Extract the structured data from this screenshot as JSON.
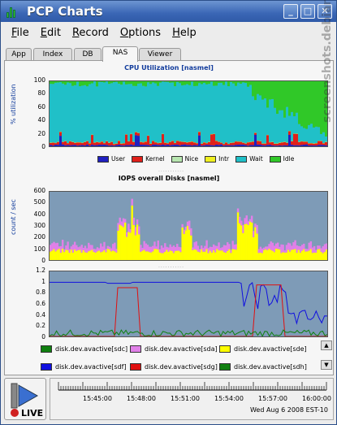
{
  "window": {
    "title": "PCP Charts"
  },
  "menu": [
    {
      "label": "File",
      "u": "F",
      "rest": "ile"
    },
    {
      "label": "Edit",
      "u": "E",
      "rest": "dit"
    },
    {
      "label": "Record",
      "u": "R",
      "rest": "ecord"
    },
    {
      "label": "Options",
      "u": "O",
      "rest": "ptions"
    },
    {
      "label": "Help",
      "u": "H",
      "rest": "elp"
    }
  ],
  "tabs": [
    "App",
    "Index",
    "DB",
    "NAS",
    "Viewer"
  ],
  "active_tab": "NAS",
  "colors": {
    "plot_bg": "#7e9bb7",
    "user": "#2020c0",
    "kernel": "#e0201a",
    "nice": "#b8e6b0",
    "intr": "#f0f020",
    "wait": "#20c0c8",
    "idle": "#30c828",
    "sda": "#e080e8",
    "sdc": "#ffff00",
    "sde": "#ffff00",
    "sdf": "#1010e0",
    "sdg": "#e01010",
    "sdh": "#108010"
  },
  "chart1": {
    "title": "CPU Utilization [nasmel]",
    "ylabel": "% utilization",
    "yticks": [
      "100",
      "80",
      "60",
      "40",
      "20",
      "0"
    ],
    "legend": [
      "User",
      "Kernel",
      "Nice",
      "Intr",
      "Wait",
      "Idle"
    ]
  },
  "chart2": {
    "title": "IOPS overall Disks [nasmel]",
    "ylabel": "count / sec",
    "yticks": [
      "600",
      "500",
      "400",
      "300",
      "200",
      "100",
      "0"
    ]
  },
  "chart3": {
    "yticks": [
      "1.2",
      "1",
      "0.8",
      "0.6",
      "0.4",
      "0.2",
      "0"
    ]
  },
  "disk_legend": [
    "disk.dev.avactive[sdc]",
    "disk.dev.avactive[sda]",
    "disk.dev.avactive[sde]",
    "disk.dev.avactive[sdf]",
    "disk.dev.avactive[sdg]",
    "disk.dev.avactive[sdh]"
  ],
  "disk_legend_colors": [
    "#108010",
    "#e080e8",
    "#ffff00",
    "#1010e0",
    "#e01010",
    "#108010"
  ],
  "time": {
    "labels": [
      "15:45:00",
      "15:48:00",
      "15:51:00",
      "15:54:00",
      "15:57:00",
      "16:00:00"
    ],
    "date": "Wed Aug  6 2008 EST-10"
  },
  "live": {
    "label": "LIVE"
  },
  "watermark": "screenshots.debian.net"
}
